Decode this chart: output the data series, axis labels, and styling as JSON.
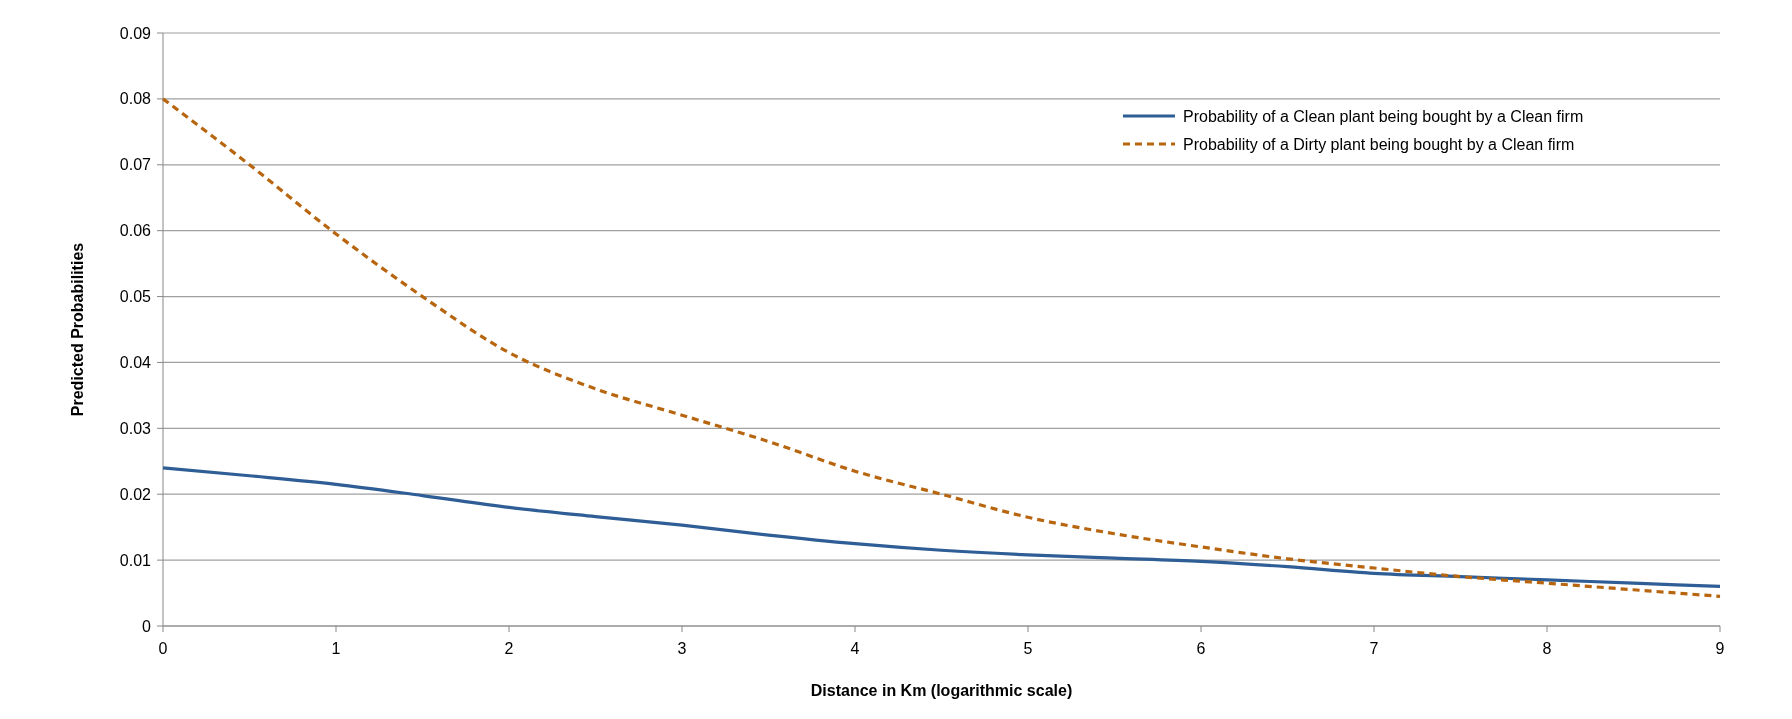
{
  "chart_data": {
    "type": "line",
    "xlabel": "Distance in Km (logarithmic scale)",
    "ylabel": "Predicted Probabilities",
    "x": [
      0,
      0.5,
      1,
      1.5,
      2,
      2.5,
      3,
      3.5,
      4,
      4.5,
      5,
      5.5,
      6,
      6.5,
      7,
      7.5,
      8,
      8.5,
      9
    ],
    "series": [
      {
        "name": "Probability of a Clean plant being bought by a Clean firm",
        "color": "#2e5e95",
        "line_style": "solid",
        "values": [
          0.024,
          0.0228,
          0.0215,
          0.0198,
          0.018,
          0.0166,
          0.0153,
          0.0138,
          0.0125,
          0.0115,
          0.0108,
          0.0103,
          0.0098,
          0.009,
          0.008,
          0.0075,
          0.007,
          0.0065,
          0.006
        ]
      },
      {
        "name": "Probability of a Dirty plant being bought by a Clean firm",
        "color": "#b8650f",
        "line_style": "dashed",
        "values": [
          0.08,
          0.07,
          0.0595,
          0.05,
          0.0415,
          0.036,
          0.032,
          0.028,
          0.0235,
          0.02,
          0.0165,
          0.014,
          0.012,
          0.0102,
          0.0088,
          0.0075,
          0.0065,
          0.0055,
          0.0045
        ]
      }
    ],
    "xlim": [
      0,
      9
    ],
    "xticks": [
      0,
      1,
      2,
      3,
      4,
      5,
      6,
      7,
      8,
      9
    ],
    "ylim": [
      0,
      0.09
    ],
    "yticks": [
      0,
      0.01,
      0.02,
      0.03,
      0.04,
      0.05,
      0.06,
      0.07,
      0.08,
      0.09
    ],
    "grid": "y",
    "legend": "top right",
    "marker": "none"
  }
}
